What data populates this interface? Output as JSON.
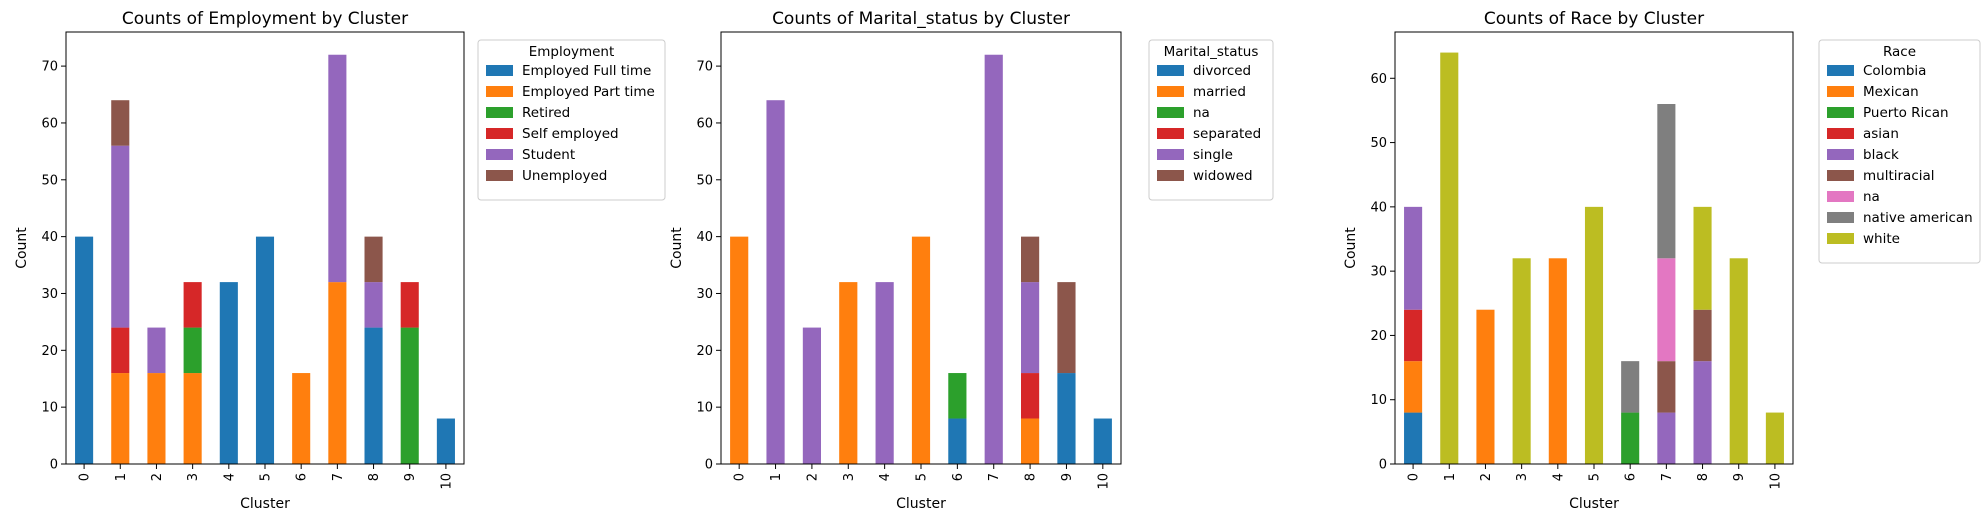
{
  "chart_data": [
    {
      "type": "bar",
      "stacked": true,
      "title": "Counts of Employment by Cluster",
      "xlabel": "Cluster",
      "ylabel": "Count",
      "categories": [
        "0",
        "1",
        "2",
        "3",
        "4",
        "5",
        "6",
        "7",
        "8",
        "9",
        "10"
      ],
      "ylim": [
        0,
        76
      ],
      "yticks": [
        0,
        10,
        20,
        30,
        40,
        50,
        60,
        70
      ],
      "grid": false,
      "legend_title": "Employment",
      "legend_position": "outside-right",
      "series": [
        {
          "name": "Employed Full time",
          "color": "#1f77b4",
          "values": [
            40,
            0,
            0,
            0,
            32,
            40,
            0,
            0,
            24,
            0,
            8
          ]
        },
        {
          "name": "Employed Part time",
          "color": "#ff7f0e",
          "values": [
            0,
            16,
            16,
            16,
            0,
            0,
            16,
            32,
            0,
            0,
            0
          ]
        },
        {
          "name": "Retired",
          "color": "#2ca02c",
          "values": [
            0,
            0,
            0,
            8,
            0,
            0,
            0,
            0,
            0,
            24,
            0
          ]
        },
        {
          "name": "Self employed",
          "color": "#d62728",
          "values": [
            0,
            8,
            0,
            8,
            0,
            0,
            0,
            0,
            0,
            8,
            0
          ]
        },
        {
          "name": "Student",
          "color": "#9467bd",
          "values": [
            0,
            32,
            8,
            0,
            0,
            0,
            0,
            40,
            8,
            0,
            0
          ]
        },
        {
          "name": "Unemployed",
          "color": "#8c564b",
          "values": [
            0,
            8,
            0,
            0,
            0,
            0,
            0,
            0,
            8,
            0,
            0
          ]
        }
      ]
    },
    {
      "type": "bar",
      "stacked": true,
      "title": "Counts of Marital_status by Cluster",
      "xlabel": "Cluster",
      "ylabel": "Count",
      "categories": [
        "0",
        "1",
        "2",
        "3",
        "4",
        "5",
        "6",
        "7",
        "8",
        "9",
        "10"
      ],
      "ylim": [
        0,
        76
      ],
      "yticks": [
        0,
        10,
        20,
        30,
        40,
        50,
        60,
        70
      ],
      "grid": false,
      "legend_title": "Marital_status",
      "legend_position": "outside-right",
      "series": [
        {
          "name": "divorced",
          "color": "#1f77b4",
          "values": [
            0,
            0,
            0,
            0,
            0,
            0,
            8,
            0,
            0,
            16,
            8
          ]
        },
        {
          "name": "married",
          "color": "#ff7f0e",
          "values": [
            40,
            0,
            0,
            32,
            0,
            40,
            0,
            0,
            8,
            0,
            0
          ]
        },
        {
          "name": "na",
          "color": "#2ca02c",
          "values": [
            0,
            0,
            0,
            0,
            0,
            0,
            8,
            0,
            0,
            0,
            0
          ]
        },
        {
          "name": "separated",
          "color": "#d62728",
          "values": [
            0,
            0,
            0,
            0,
            0,
            0,
            0,
            0,
            8,
            0,
            0
          ]
        },
        {
          "name": "single",
          "color": "#9467bd",
          "values": [
            0,
            64,
            24,
            0,
            32,
            0,
            0,
            72,
            16,
            0,
            0
          ]
        },
        {
          "name": "widowed",
          "color": "#8c564b",
          "values": [
            0,
            0,
            0,
            0,
            0,
            0,
            0,
            0,
            8,
            16,
            0
          ]
        }
      ]
    },
    {
      "type": "bar",
      "stacked": true,
      "title": "Counts of Race by Cluster",
      "xlabel": "Cluster",
      "ylabel": "Count",
      "categories": [
        "0",
        "1",
        "2",
        "3",
        "4",
        "5",
        "6",
        "7",
        "8",
        "9",
        "10"
      ],
      "ylim": [
        0,
        67.2
      ],
      "yticks": [
        0,
        10,
        20,
        30,
        40,
        50,
        60
      ],
      "grid": false,
      "legend_title": "Race",
      "legend_position": "outside-right",
      "series": [
        {
          "name": "Colombia",
          "color": "#1f77b4",
          "values": [
            8,
            0,
            0,
            0,
            0,
            0,
            0,
            0,
            0,
            0,
            0
          ]
        },
        {
          "name": "Mexican",
          "color": "#ff7f0e",
          "values": [
            8,
            0,
            24,
            0,
            32,
            0,
            0,
            0,
            0,
            0,
            0
          ]
        },
        {
          "name": "Puerto Rican",
          "color": "#2ca02c",
          "values": [
            0,
            0,
            0,
            0,
            0,
            0,
            8,
            0,
            0,
            0,
            0
          ]
        },
        {
          "name": "asian",
          "color": "#d62728",
          "values": [
            8,
            0,
            0,
            0,
            0,
            0,
            0,
            0,
            0,
            0,
            0
          ]
        },
        {
          "name": "black",
          "color": "#9467bd",
          "values": [
            16,
            0,
            0,
            0,
            0,
            0,
            0,
            8,
            16,
            0,
            0
          ]
        },
        {
          "name": "multiracial",
          "color": "#8c564b",
          "values": [
            0,
            0,
            0,
            0,
            0,
            0,
            0,
            8,
            8,
            0,
            0
          ]
        },
        {
          "name": "na",
          "color": "#e377c2",
          "values": [
            0,
            0,
            0,
            0,
            0,
            0,
            0,
            16,
            0,
            0,
            0
          ]
        },
        {
          "name": "native american",
          "color": "#7f7f7f",
          "values": [
            0,
            0,
            0,
            0,
            0,
            0,
            8,
            24,
            0,
            0,
            0
          ]
        },
        {
          "name": "white",
          "color": "#bcbd22",
          "values": [
            0,
            64,
            0,
            32,
            0,
            40,
            0,
            0,
            16,
            32,
            8
          ]
        }
      ]
    }
  ]
}
